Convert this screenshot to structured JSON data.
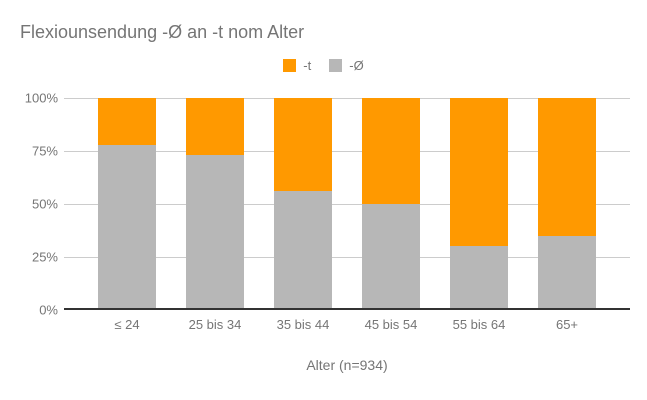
{
  "title": "Flexiounsendung -Ø an -t nom Alter",
  "legend": [
    {
      "label": "-t",
      "color": "#FF9900"
    },
    {
      "label": "-Ø",
      "color": "#B7B7B7"
    }
  ],
  "colors": {
    "series_t_orange": "#FF9900",
    "series_null_gray": "#B7B7B7",
    "gridline": "#CCCCCC",
    "baseline": "#333333",
    "text": "#757575",
    "background": "#FFFFFF"
  },
  "chart_data": {
    "type": "bar",
    "stacked": true,
    "percent_stacked": true,
    "title": "Flexiounsendung -Ø an -t nom Alter",
    "xlabel": "Alter (n=934)",
    "ylabel": "",
    "categories": [
      "≤ 24",
      "25 bis 34",
      "35 bis 44",
      "45 bis 54",
      "55 bis 64",
      "65+"
    ],
    "series": [
      {
        "name": "-Ø",
        "color": "#B7B7B7",
        "stack_position": "bottom",
        "values": [
          78,
          73,
          56,
          50,
          30,
          35
        ]
      },
      {
        "name": "-t",
        "color": "#FF9900",
        "stack_position": "top",
        "values": [
          22,
          27,
          44,
          50,
          70,
          65
        ]
      }
    ],
    "y_ticks": [
      "0%",
      "25%",
      "50%",
      "75%",
      "100%"
    ],
    "ylim": [
      0,
      100
    ],
    "grid": true,
    "legend_position": "top"
  }
}
